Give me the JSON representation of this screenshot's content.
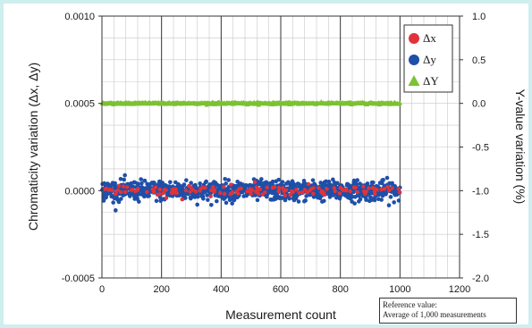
{
  "chart_data": {
    "type": "scatter",
    "title": "",
    "xlabel": "Measurement count",
    "ylabel_left": "Chromaticity variation (Δx, Δy)",
    "ylabel_right": "Y-value variation (%)",
    "xlim": [
      0,
      1200
    ],
    "ylim_left": [
      -0.0005,
      0.001
    ],
    "ylim_right": [
      -2.0,
      1.0
    ],
    "x_ticks": [
      "0",
      "200",
      "400",
      "600",
      "800",
      "1000",
      "1200"
    ],
    "y_left_ticks": [
      "0.0010",
      "0.0005",
      "0.0000",
      "-0.0005"
    ],
    "y_right_ticks": [
      "1.0",
      "0.5",
      "0.0",
      "-0.5",
      "-1.0",
      "-1.5",
      "-2.0"
    ],
    "grid": true,
    "legend_position": "top-right",
    "n_points": 1000,
    "series": [
      {
        "name": "Δx",
        "axis": "left",
        "marker": "circle",
        "color": "#e0333a",
        "mean": 0.0,
        "approx_range": [
          -3e-05,
          3e-05
        ]
      },
      {
        "name": "Δy",
        "axis": "left",
        "marker": "circle",
        "color": "#1f4fa8",
        "mean": 0.0,
        "approx_range": [
          -6e-05,
          8e-05
        ]
      },
      {
        "name": "ΔY",
        "axis": "right",
        "marker": "triangle",
        "color": "#7cc234",
        "mean": 0.0,
        "approx_range": [
          -0.02,
          0.02
        ]
      }
    ],
    "note": {
      "line1": "Reference value:",
      "line2": "Average of 1,000 measurements"
    }
  }
}
